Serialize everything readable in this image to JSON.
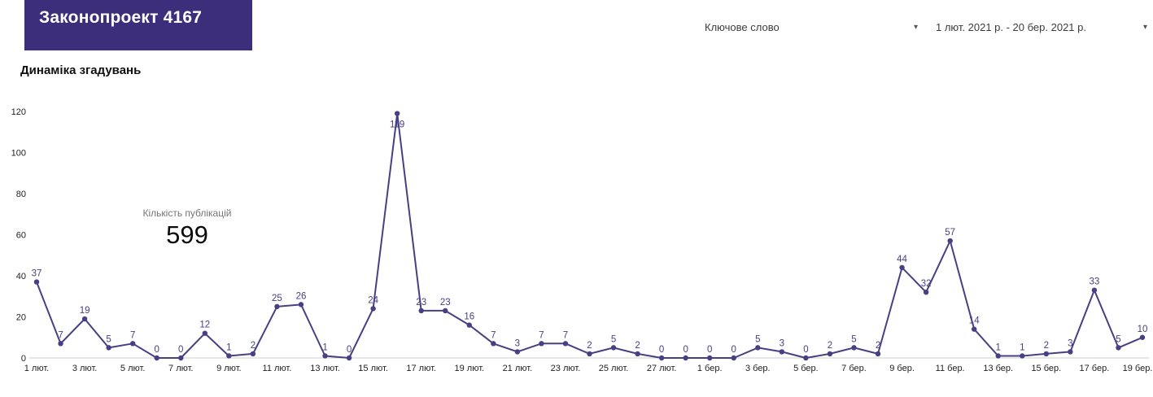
{
  "header": {
    "banner_title": "Законопроект 4167",
    "keyword_filter": {
      "label": "Ключове слово",
      "arrow": "▾"
    },
    "date_range_filter": {
      "label": "1 лют. 2021 р. - 20 бер. 2021 р.",
      "arrow": "▾"
    }
  },
  "section_title": "Динаміка згадувань",
  "summary": {
    "label": "Кількість публікацій",
    "value": "599"
  },
  "chart_data": {
    "type": "line",
    "title": "Динаміка згадувань",
    "categories": [
      "1 лют.",
      "2 лют.",
      "3 лют.",
      "4 лют.",
      "5 лют.",
      "6 лют.",
      "7 лют.",
      "8 лют.",
      "9 лют.",
      "10 лют.",
      "11 лют.",
      "12 лют.",
      "13 лют.",
      "14 лют.",
      "15 лют.",
      "16 лют.",
      "17 лют.",
      "18 лют.",
      "19 лют.",
      "20 лют.",
      "21 лют.",
      "22 лют.",
      "23 лют.",
      "24 лют.",
      "25 лют.",
      "26 лют.",
      "27 лют.",
      "28 лют.",
      "1 бер.",
      "2 бер.",
      "3 бер.",
      "4 бер.",
      "5 бер.",
      "6 бер.",
      "7 бер.",
      "8 бер.",
      "9 бер.",
      "10 бер.",
      "11 бер.",
      "12 бер.",
      "13 бер.",
      "14 бер.",
      "15 бер.",
      "16 бер.",
      "17 бер.",
      "18 бер.",
      "19 бер."
    ],
    "values": [
      37,
      7,
      19,
      5,
      7,
      0,
      0,
      12,
      1,
      2,
      25,
      26,
      1,
      0,
      24,
      119,
      23,
      23,
      16,
      7,
      3,
      7,
      7,
      2,
      5,
      2,
      0,
      0,
      0,
      0,
      5,
      3,
      0,
      2,
      5,
      2,
      44,
      32,
      57,
      14,
      1,
      1,
      2,
      3,
      33,
      5,
      10
    ],
    "total": 599,
    "y_ticks": [
      0,
      20,
      40,
      60,
      80,
      100,
      120
    ],
    "ylim": [
      0,
      120
    ],
    "x_tick_every": 2,
    "grid": false,
    "legend": "none",
    "line_color": "#474082",
    "label_color": "#474082",
    "axis_text_color": "#1f1f1f",
    "axis_line_color": "#cfcfcf"
  },
  "colors": {
    "banner_bg": "#3C2E7B"
  }
}
